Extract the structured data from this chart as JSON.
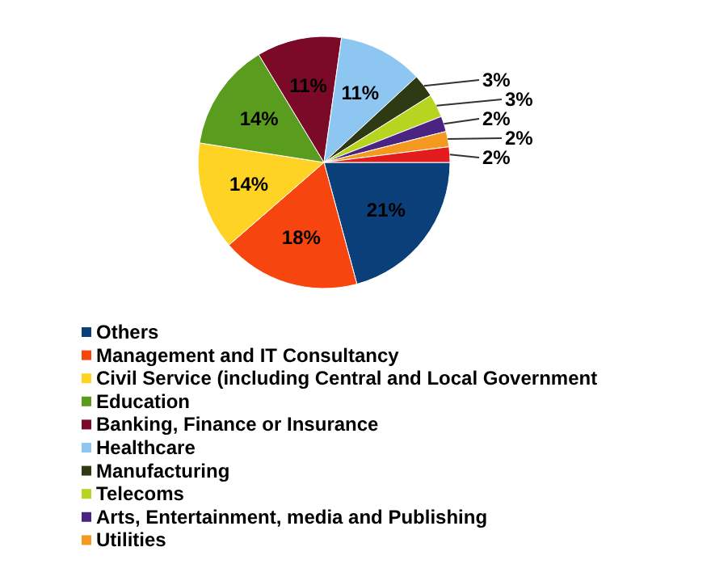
{
  "chart_data": {
    "type": "pie",
    "categories": [
      "Others",
      "Management and IT Consultancy",
      "Civil Service (including Central and Local Government",
      "Education",
      "Banking, Finance or Insurance",
      "Healthcare",
      "Manufacturing",
      "Telecoms",
      "Arts, Entertainment, media and Publishing",
      "Utilities",
      null
    ],
    "values": [
      21,
      18,
      14,
      14,
      11,
      11,
      3,
      3,
      2,
      2,
      2
    ],
    "value_labels": [
      "21%",
      "18%",
      "14%",
      "14%",
      "11%",
      "11%",
      "3%",
      "3%",
      "2%",
      "2%",
      "2%"
    ],
    "colors": [
      "#0a3f7a",
      "#f7450f",
      "#ffd324",
      "#5a9c1e",
      "#7a0a28",
      "#8ec6f2",
      "#2e3a14",
      "#b6d420",
      "#4b2383",
      "#f3991f",
      "#e21c1c"
    ],
    "legend": "bottom"
  }
}
